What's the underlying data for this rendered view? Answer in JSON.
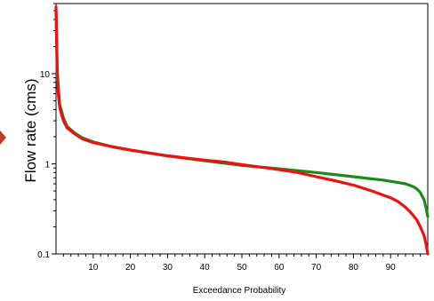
{
  "chart_data": {
    "type": "line",
    "title": "",
    "xlabel": "Exceedance Probability",
    "ylabel": "Flow rate (cms)",
    "xlim": [
      0,
      100
    ],
    "ylim": [
      0.1,
      60
    ],
    "yscale": "log",
    "grid": false,
    "legend": "none",
    "xticks": [
      10,
      20,
      30,
      40,
      50,
      60,
      70,
      80,
      90
    ],
    "yticks": [
      0.1,
      1,
      10
    ],
    "ytick_labels": [
      "0.1",
      "1",
      "10"
    ],
    "series": [
      {
        "color": "#1a8a1a",
        "x": [
          0,
          0.3,
          0.6,
          1,
          1.5,
          2,
          3,
          5,
          7,
          10,
          15,
          20,
          25,
          30,
          35,
          40,
          45,
          50,
          55,
          60,
          65,
          70,
          75,
          80,
          85,
          88,
          90,
          92,
          94,
          95,
          96,
          97,
          98,
          99,
          99.5,
          100
        ],
        "y": [
          50,
          12,
          7,
          4.5,
          3.8,
          3.2,
          2.6,
          2.2,
          1.95,
          1.75,
          1.55,
          1.42,
          1.32,
          1.22,
          1.15,
          1.08,
          1.02,
          0.96,
          0.92,
          0.88,
          0.84,
          0.8,
          0.76,
          0.72,
          0.68,
          0.66,
          0.64,
          0.62,
          0.6,
          0.58,
          0.56,
          0.53,
          0.48,
          0.4,
          0.33,
          0.26
        ]
      },
      {
        "color": "#ee1111",
        "x": [
          0,
          0.3,
          0.6,
          1,
          1.5,
          2,
          3,
          5,
          7,
          10,
          15,
          20,
          25,
          30,
          35,
          40,
          45,
          50,
          55,
          60,
          65,
          70,
          75,
          80,
          85,
          88,
          90,
          92,
          94,
          95,
          96,
          97,
          98,
          99,
          99.5,
          100
        ],
        "y": [
          55,
          10,
          6,
          4.2,
          3.5,
          3.0,
          2.5,
          2.15,
          1.9,
          1.72,
          1.55,
          1.42,
          1.32,
          1.23,
          1.16,
          1.1,
          1.05,
          0.98,
          0.92,
          0.86,
          0.8,
          0.72,
          0.65,
          0.58,
          0.5,
          0.45,
          0.42,
          0.38,
          0.33,
          0.3,
          0.27,
          0.24,
          0.2,
          0.16,
          0.13,
          0.1
        ]
      }
    ]
  },
  "colors": {
    "arrow": "#c0392b",
    "axis": "#000000"
  }
}
